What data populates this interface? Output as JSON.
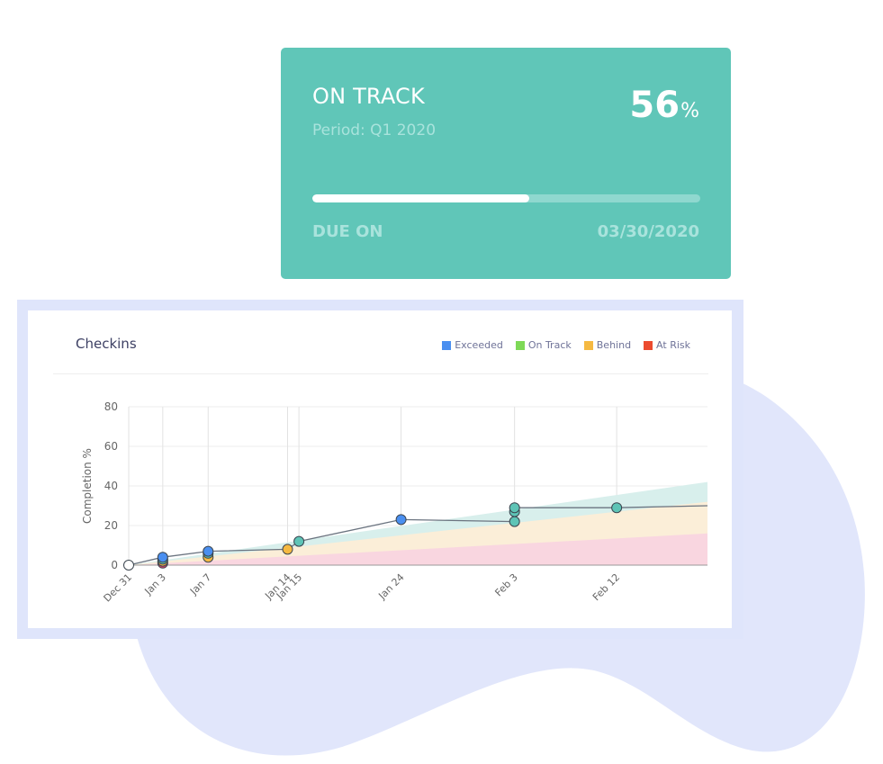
{
  "status_card": {
    "status": "ON TRACK",
    "period": "Period: Q1 2020",
    "progress_value": "56",
    "progress_unit": "%",
    "progress_fraction": 0.56,
    "due_label": "DUE ON",
    "due_date": "03/30/2020",
    "color": "#60c6b8"
  },
  "chart_panel": {
    "title": "Checkins",
    "legend": [
      {
        "label": "Exceeded",
        "color": "#4a8ff0"
      },
      {
        "label": "On Track",
        "color": "#7ed957"
      },
      {
        "label": "Behind",
        "color": "#f5b942"
      },
      {
        "label": "At Risk",
        "color": "#ec4b2f"
      }
    ]
  },
  "chart_data": {
    "type": "line",
    "title": "",
    "xlabel": "",
    "ylabel": "Completion %",
    "ylim": [
      0,
      80
    ],
    "xlim": [
      "2019-12-31",
      "2020-02-20"
    ],
    "yticks": [
      0,
      20,
      40,
      60,
      80
    ],
    "xticks": [
      {
        "date": "2019-12-31",
        "label": "Dec 31"
      },
      {
        "date": "2020-01-03",
        "label": "Jan 3"
      },
      {
        "date": "2020-01-07",
        "label": "Jan 7"
      },
      {
        "date": "2020-01-14",
        "label": "Jan 14"
      },
      {
        "date": "2020-01-15",
        "label": "Jan 15"
      },
      {
        "date": "2020-01-24",
        "label": "Jan 24"
      },
      {
        "date": "2020-02-03",
        "label": "Feb 3"
      },
      {
        "date": "2020-02-12",
        "label": "Feb 12"
      }
    ],
    "grid": true,
    "legend_position": "top-right",
    "series": [
      {
        "points": [
          {
            "x": "2019-12-31",
            "y": 0,
            "color": "#ffffff"
          },
          {
            "x": "2020-01-03",
            "y": 1,
            "color": "#e0406a"
          },
          {
            "x": "2020-01-03",
            "y": 2,
            "color": "#f5b942"
          },
          {
            "x": "2020-01-03",
            "y": 3,
            "color": "#5ec4b6"
          },
          {
            "x": "2020-01-03",
            "y": 4,
            "color": "#4a8ff0"
          },
          {
            "x": "2020-01-07",
            "y": 4,
            "color": "#f5b942"
          },
          {
            "x": "2020-01-07",
            "y": 6,
            "color": "#5ec4b6"
          },
          {
            "x": "2020-01-07",
            "y": 7,
            "color": "#4a8ff0"
          },
          {
            "x": "2020-01-14",
            "y": 8,
            "color": "#f5b942"
          },
          {
            "x": "2020-01-15",
            "y": 12,
            "color": "#5ec4b6"
          },
          {
            "x": "2020-01-24",
            "y": 23,
            "color": "#4a8ff0"
          },
          {
            "x": "2020-02-03",
            "y": 22,
            "color": "#5ec4b6"
          },
          {
            "x": "2020-02-03",
            "y": 27,
            "color": "#5ec4b6"
          },
          {
            "x": "2020-02-03",
            "y": 29,
            "color": "#5ec4b6"
          },
          {
            "x": "2020-02-12",
            "y": 29,
            "color": "#5ec4b6"
          }
        ],
        "line": [
          {
            "x": "2019-12-31",
            "y": 0
          },
          {
            "x": "2020-01-03",
            "y": 4
          },
          {
            "x": "2020-01-07",
            "y": 7
          },
          {
            "x": "2020-01-14",
            "y": 8
          },
          {
            "x": "2020-01-15",
            "y": 12
          },
          {
            "x": "2020-01-24",
            "y": 23
          },
          {
            "x": "2020-02-03",
            "y": 22
          },
          {
            "x": "2020-02-03",
            "y": 29
          },
          {
            "x": "2020-02-12",
            "y": 29
          },
          {
            "x": "2020-02-20",
            "y": 30
          }
        ]
      }
    ],
    "bands": [
      {
        "name": "Exceeded",
        "color": "#d8efec",
        "start": 0,
        "end": 42
      },
      {
        "name": "On Track",
        "color": "#fbeed8",
        "start": 0,
        "end": 32
      },
      {
        "name": "At Risk",
        "color": "#f9d6e0",
        "start": 0,
        "end": 16
      }
    ]
  }
}
